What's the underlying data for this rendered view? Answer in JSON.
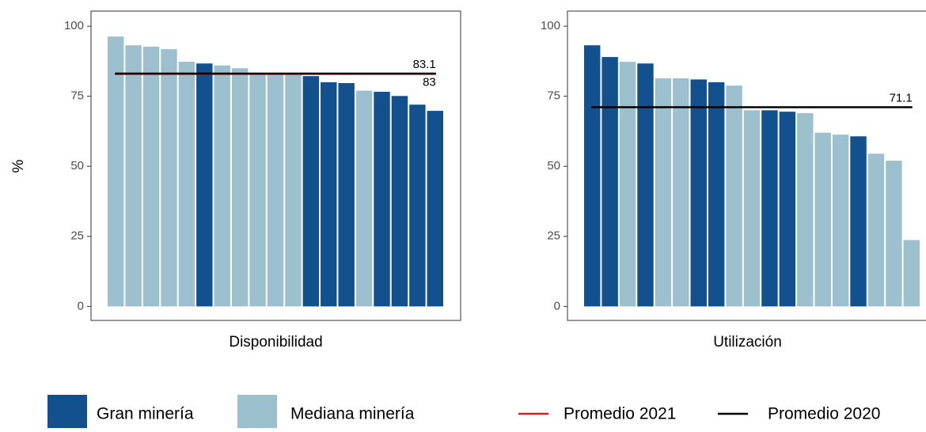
{
  "chart_data": [
    {
      "type": "bar",
      "x_label": "Disponibilidad",
      "y_label": "%",
      "categories": [
        null,
        null,
        null,
        null,
        null,
        null,
        null,
        null,
        null,
        null,
        null,
        null,
        null,
        null,
        null,
        null,
        null,
        null,
        null
      ],
      "values": [
        96.3,
        93.2,
        92.7,
        91.8,
        87.3,
        86.7,
        86,
        85,
        83,
        83,
        83,
        82.2,
        80,
        79.7,
        77,
        76.6,
        75.1,
        72,
        69.8
      ],
      "colors": [
        "#9dc0cf",
        "#9dc0cf",
        "#9dc0cf",
        "#9dc0cf",
        "#9dc0cf",
        "#12508e",
        "#9dc0cf",
        "#9dc0cf",
        "#9dc0cf",
        "#9dc0cf",
        "#9dc0cf",
        "#12508e",
        "#12508e",
        "#12508e",
        "#9dc0cf",
        "#12508e",
        "#12508e",
        "#12508e",
        "#12508e"
      ],
      "lines": [
        {
          "name": "Promedio 2021",
          "value": 83,
          "color": "#c0272d"
        },
        {
          "name": "Promedio 2020",
          "value": 83.1,
          "color": "#000000"
        }
      ],
      "ylim": [
        -5,
        105.4
      ],
      "yticks": [
        0,
        25,
        50,
        75,
        100
      ]
    },
    {
      "type": "bar",
      "x_label": "Utilización",
      "categories": [
        null,
        null,
        null,
        null,
        null,
        null,
        null,
        null,
        null,
        null,
        null,
        null,
        null,
        null,
        null,
        null,
        null,
        null,
        null
      ],
      "values": [
        93.2,
        89,
        87.3,
        86.7,
        81.4,
        81.4,
        81,
        80,
        78.8,
        70,
        70,
        69.5,
        69,
        62,
        61.3,
        60.7,
        54.5,
        52,
        23.7
      ],
      "colors": [
        "#12508e",
        "#12508e",
        "#9dc0cf",
        "#12508e",
        "#9dc0cf",
        "#9dc0cf",
        "#12508e",
        "#12508e",
        "#9dc0cf",
        "#9dc0cf",
        "#12508e",
        "#12508e",
        "#9dc0cf",
        "#9dc0cf",
        "#9dc0cf",
        "#12508e",
        "#9dc0cf",
        "#9dc0cf",
        "#9dc0cf"
      ],
      "lines": [
        {
          "name": "Promedio 2020",
          "value": 71.1,
          "color": "#000000"
        }
      ],
      "ylim": [
        -5,
        105.4
      ],
      "yticks": [
        0,
        25,
        50,
        75,
        100
      ]
    }
  ],
  "legend": [
    {
      "name": "Gran minería",
      "color": "#12508e",
      "shape": "box"
    },
    {
      "name": "Mediana minería",
      "color": "#9dc0cf",
      "shape": "box"
    },
    {
      "name": "Promedio 2021",
      "color": "#c0272d",
      "shape": "line"
    },
    {
      "name": "Promedio 2020",
      "color": "#000000",
      "shape": "line"
    }
  ]
}
